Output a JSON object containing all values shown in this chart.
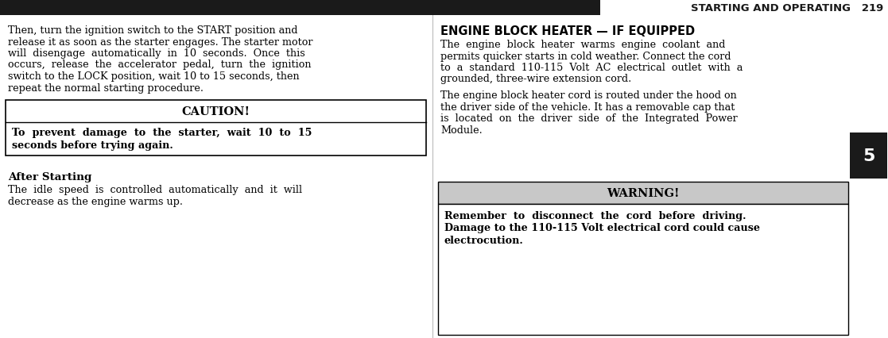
{
  "header_bar_color": "#1a1a1a",
  "header_text": "STARTING AND OPERATING   219",
  "header_text_color": "#1a1a1a",
  "bg_color": "#ffffff",
  "body_text_color": "#000000",
  "left_para1_lines": [
    "Then, turn the ignition switch to the START position and",
    "release it as soon as the starter engages. The starter motor",
    "will  disengage  automatically  in  10  seconds.  Once  this",
    "occurs,  release  the  accelerator  pedal,  turn  the  ignition",
    "switch to the LOCK position, wait 10 to 15 seconds, then",
    "repeat the normal starting procedure."
  ],
  "caution_title": "CAUTION!",
  "caution_body_lines": [
    "To  prevent  damage  to  the  starter,  wait  10  to  15",
    "seconds before trying again."
  ],
  "after_starting_title": "After Starting",
  "after_starting_body_lines": [
    "The  idle  speed  is  controlled  automatically  and  it  will",
    "decrease as the engine warms up."
  ],
  "right_section_title": "ENGINE BLOCK HEATER — IF EQUIPPED",
  "right_para1_lines": [
    "The  engine  block  heater  warms  engine  coolant  and",
    "permits quicker starts in cold weather. Connect the cord",
    "to  a  standard  110-115  Volt  AC  electrical  outlet  with  a",
    "grounded, three-wire extension cord."
  ],
  "right_para2_lines": [
    "The engine block heater cord is routed under the hood on",
    "the driver side of the vehicle. It has a removable cap that",
    "is  located  on  the  driver  side  of  the  Integrated  Power",
    "Module."
  ],
  "warning_title": "WARNING!",
  "warning_body_lines": [
    "Remember  to  disconnect  the  cord  before  driving.",
    "Damage to the 110-115 Volt electrical cord could cause",
    "electrocution."
  ],
  "warning_bg": "#c8c8c8",
  "tab_number": "5",
  "tab_bg": "#1a1a1a",
  "tab_text_color": "#ffffff",
  "font_size_body": 9.2,
  "font_size_header": 9.5,
  "font_size_section_title": 10.5,
  "font_size_caution_title": 10.5,
  "font_size_tab": 16,
  "fig_width": 11.17,
  "fig_height": 4.27,
  "dpi": 100
}
